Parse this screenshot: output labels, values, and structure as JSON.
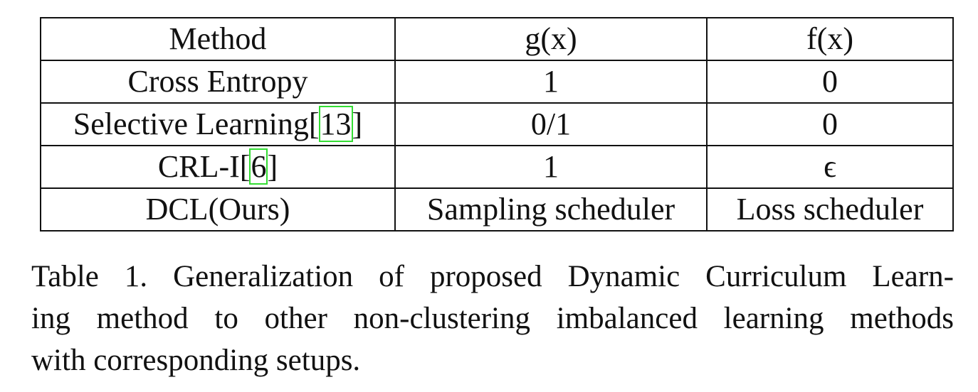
{
  "table": {
    "headers": [
      "Method",
      "g(x)",
      "f(x)"
    ],
    "rows": [
      {
        "method": "Cross Entropy",
        "cite": "",
        "g": "1",
        "f": "0"
      },
      {
        "method": "Selective Learning",
        "cite": "13",
        "g": "0/1",
        "f": "0"
      },
      {
        "method": "CRL-I",
        "cite": "6",
        "g": "1",
        "f": "ϵ"
      },
      {
        "method": "DCL(Ours)",
        "cite": "",
        "g": "Sampling scheduler",
        "f": "Loss scheduler"
      }
    ]
  },
  "caption": {
    "lines": [
      "Table 1. Generalization of proposed Dynamic Curriculum Learn-",
      "ing method to other non-clustering imbalanced learning methods",
      "with corresponding setups."
    ]
  },
  "colors": {
    "citation_box": "#33dd33",
    "text": "#111111",
    "background": "#ffffff"
  }
}
